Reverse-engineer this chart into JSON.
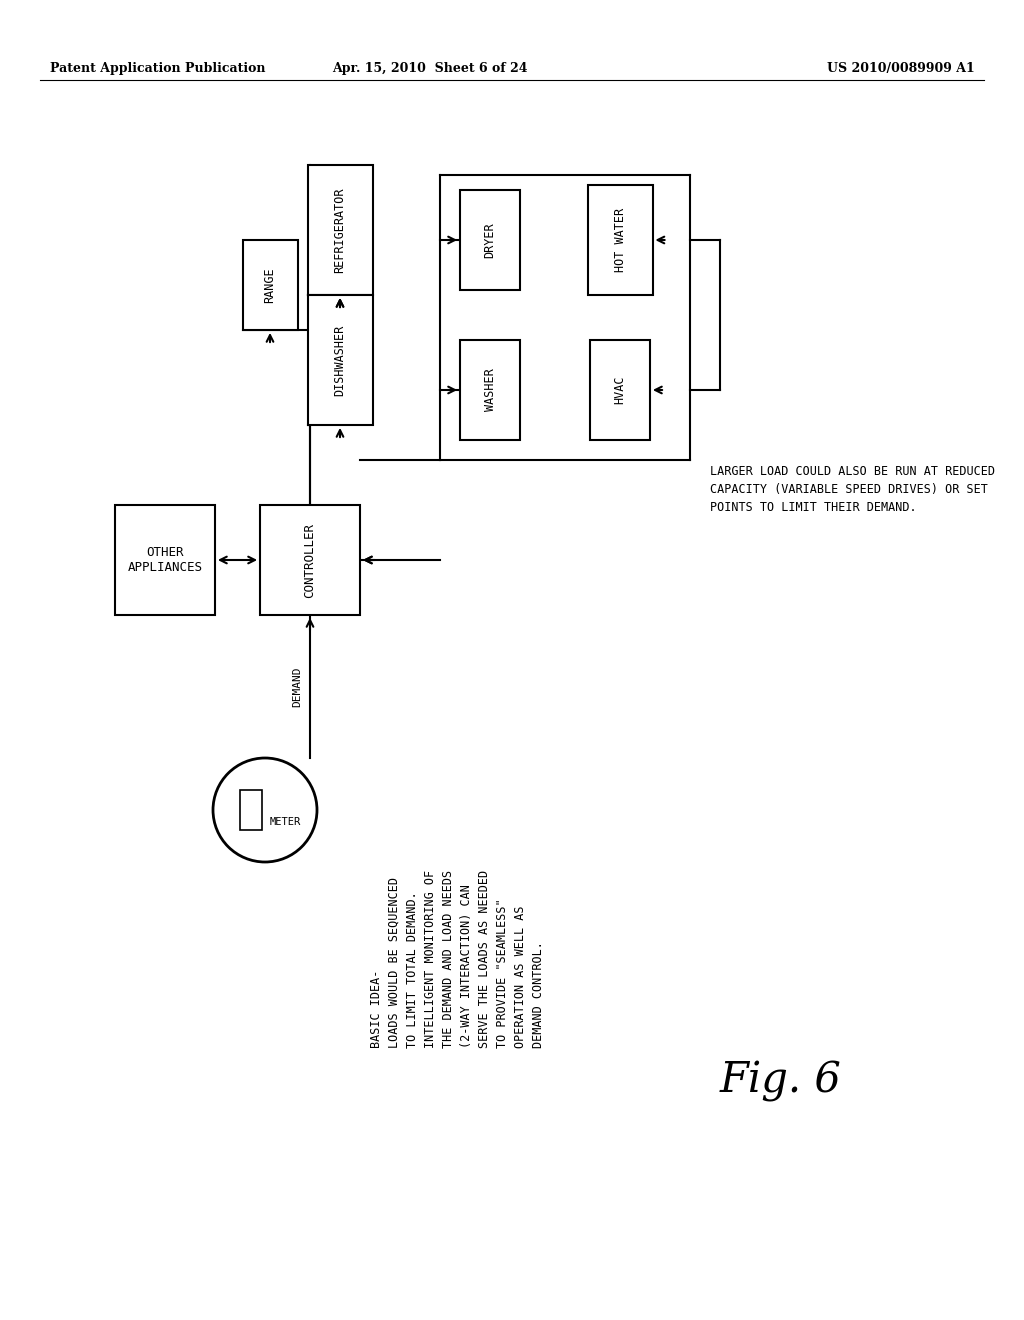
{
  "header_left": "Patent Application Publication",
  "header_mid": "Apr. 15, 2010  Sheet 6 of 24",
  "header_right": "US 2010/0089909 A1",
  "fig_label": "Fig. 6",
  "bg_color": "#ffffff",
  "line_color": "#000000",
  "note_right": "LARGER LOAD COULD ALSO BE RUN AT REDUCED\nCAPACITY (VARIABLE SPEED DRIVES) OR SET\nPOINTS TO LIMIT THEIR DEMAND.",
  "note_left": "BASIC IDEA-\nLOADS WOULD BE SEQUENCED\nTO LIMIT TOTAL DEMAND.\nINTELLIGENT MONITORING OF\nTHE DEMAND AND LOAD NEEDS\n(2-WAY INTERACTION) CAN\nSERVE THE LOADS AS NEEDED\nTO PROVIDE \"SEAMLESS\"\nOPERATION AS WELL AS\nDEMAND CONTROL."
}
